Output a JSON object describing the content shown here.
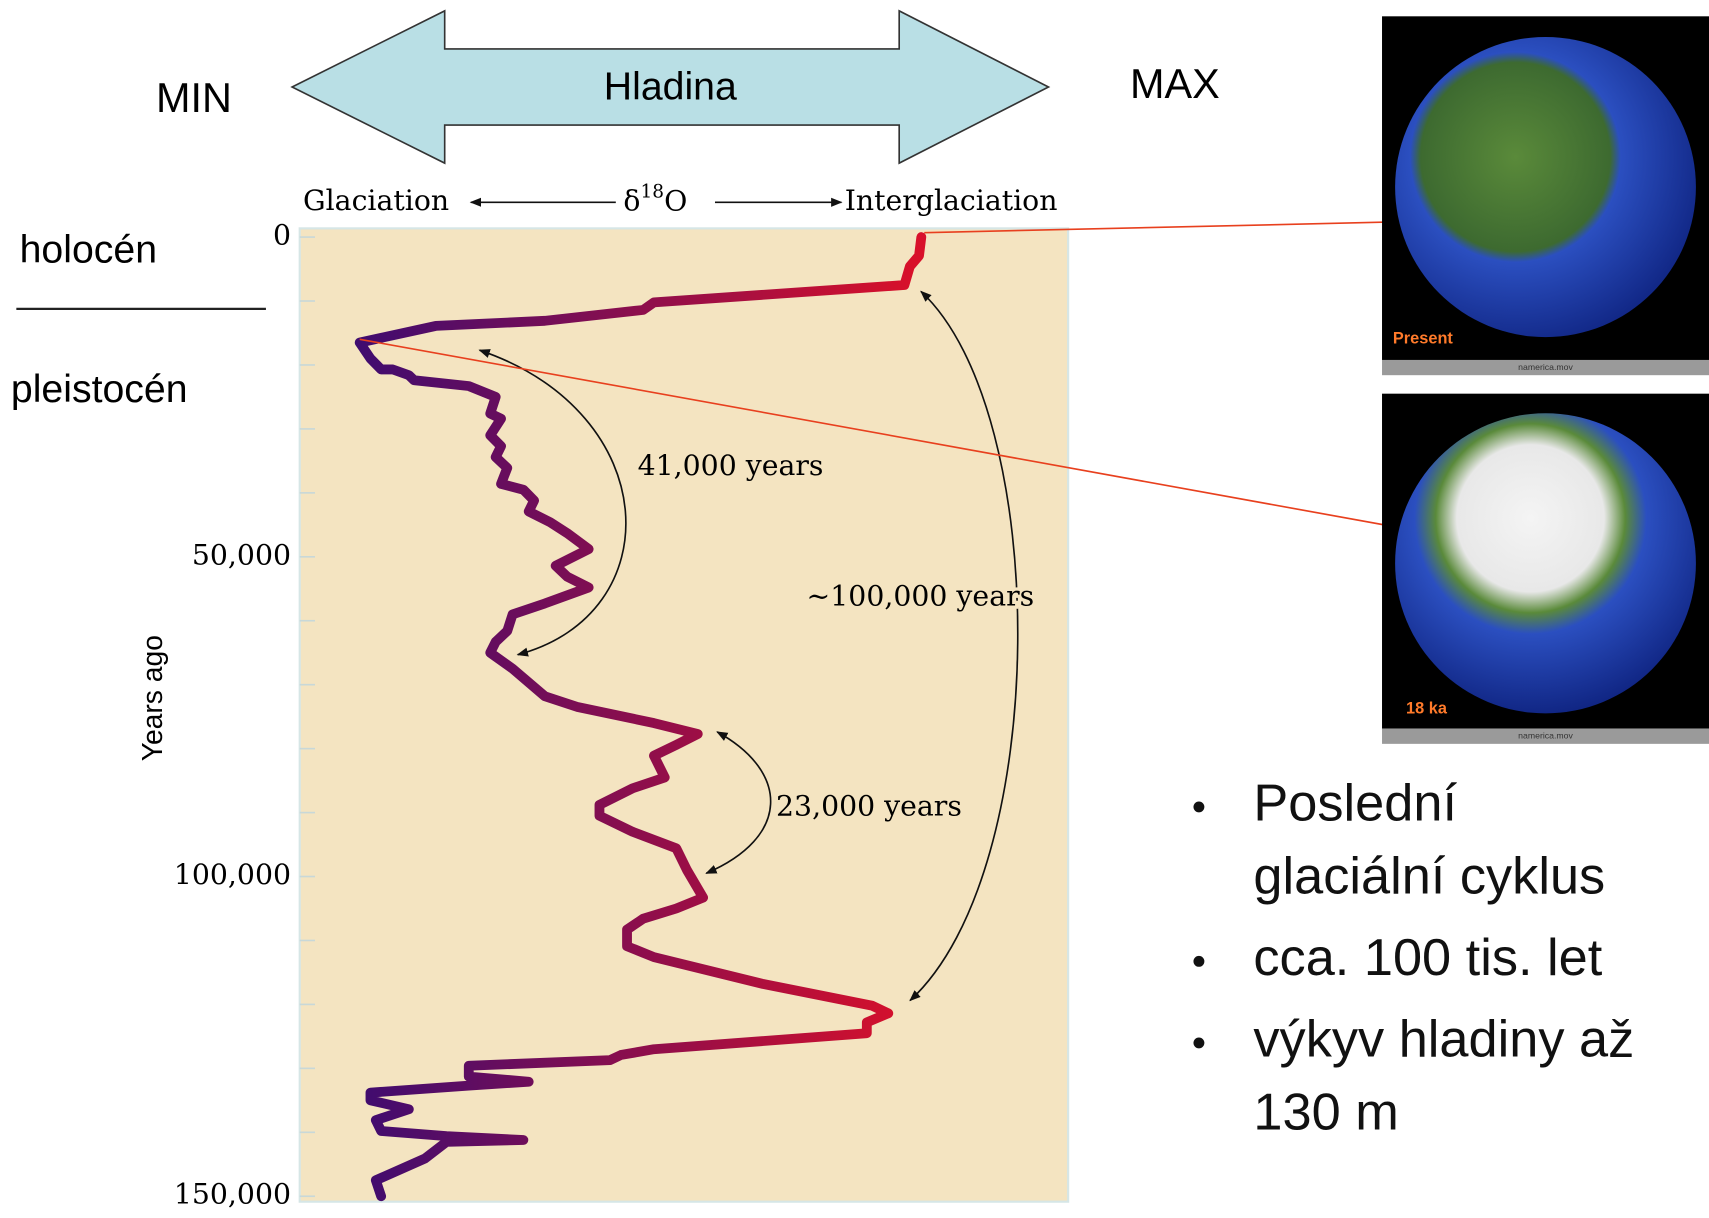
{
  "slide": {
    "arrow_label": "Hladina",
    "min_label": "MIN",
    "max_label": "MAX",
    "epochs": [
      "holocén",
      "pleistocén"
    ],
    "images": [
      {
        "caption": "Present",
        "file": "namerica.mov"
      },
      {
        "caption": "18 ka",
        "file": "namerica.mov"
      }
    ],
    "bullets": [
      [
        "Poslední",
        "glaciální cyklus"
      ],
      [
        "cca. 100 tis. let"
      ],
      [
        "výkyv hladiny až",
        "130 m"
      ]
    ]
  },
  "chart_data": {
    "type": "line",
    "x_left_label": "Glaciation",
    "x_label_parts": [
      "δ",
      "18",
      "O"
    ],
    "x_right_label": "Interglaciation",
    "y_label": "Years ago",
    "annotations": [
      "41,000 years",
      "~100,000 years",
      "23,000 years"
    ],
    "x": [
      0,
      2900,
      4600,
      7500,
      10200,
      11400,
      13100,
      13900,
      16500,
      19000,
      20700,
      20700,
      21600,
      22400,
      23300,
      25000,
      27600,
      28400,
      31000,
      32700,
      34400,
      36100,
      38600,
      39500,
      41200,
      42900,
      44600,
      46300,
      48800,
      51400,
      53100,
      54800,
      57300,
      59000,
      61600,
      63300,
      65000,
      67500,
      71800,
      73500,
      76000,
      77700,
      79400,
      81100,
      84500,
      86200,
      88800,
      90500,
      93000,
      95600,
      99000,
      103300,
      105000,
      106600,
      108300,
      110900,
      112600,
      116800,
      120200,
      121400,
      122800,
      124500,
      127000,
      127900,
      128700,
      129600,
      131300,
      132100,
      132700,
      133800,
      135000,
      136400,
      138100,
      139800,
      140600,
      141200,
      141500,
      144100,
      147500,
      150000
    ],
    "values": [
      80.9,
      80.6,
      79.4,
      78.7,
      46.1,
      44.7,
      31.9,
      17.7,
      7.8,
      9.2,
      10.6,
      12.1,
      14.2,
      14.9,
      22.0,
      25.5,
      24.8,
      26.2,
      24.8,
      26.2,
      25.5,
      27.0,
      26.2,
      29.1,
      30.5,
      29.8,
      32.6,
      34.8,
      37.6,
      33.3,
      34.8,
      37.6,
      31.9,
      27.7,
      27.0,
      25.5,
      24.8,
      27.7,
      31.9,
      36.2,
      46.1,
      51.8,
      49.0,
      46.1,
      47.5,
      43.3,
      39.0,
      39.0,
      43.3,
      49.0,
      50.4,
      52.5,
      49.0,
      44.7,
      42.6,
      42.6,
      46.1,
      60.3,
      74.5,
      76.6,
      73.8,
      73.8,
      46.1,
      41.8,
      40.4,
      22.0,
      22.0,
      29.8,
      22.0,
      9.2,
      9.2,
      14.2,
      9.9,
      10.6,
      19.1,
      29.1,
      19.1,
      16.3,
      9.9,
      10.6
    ],
    "colors": [
      "#3a0c72",
      "#d8102a"
    ],
    "xlim": [
      0,
      100
    ],
    "ylim": [
      0,
      150000
    ],
    "yticks": [
      0,
      {
        "value": 50000,
        "label": "50,000"
      },
      {
        "value": 100000,
        "label": "100,000"
      },
      {
        "value": 150000,
        "label": "150,000"
      }
    ],
    "minor_yticks": [
      10000,
      20000,
      30000,
      40000,
      60000,
      70000,
      80000,
      90000,
      110000,
      120000,
      130000,
      140000
    ]
  }
}
